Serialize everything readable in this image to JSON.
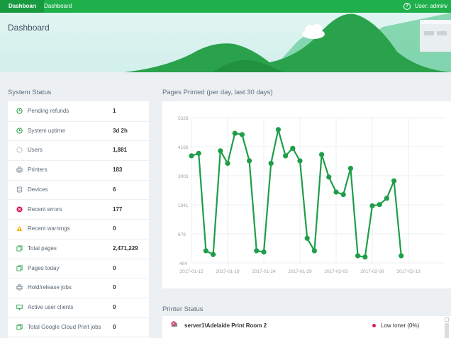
{
  "topbar": {
    "crumb1": "Dashboard",
    "crumb2": "Dashboard",
    "help": "?",
    "user": "User: admin",
    "user_chevron": "v"
  },
  "page_title": "Dashboard",
  "system_status": {
    "title": "System Status",
    "rows": [
      {
        "label": "Pending refunds",
        "value": "1",
        "icon": "clock-icon"
      },
      {
        "label": "System uptime",
        "value": "3d 2h",
        "icon": "clock-icon"
      },
      {
        "label": "Users",
        "value": "1,881",
        "icon": "user-icon"
      },
      {
        "label": "Printers",
        "value": "183",
        "icon": "printer-icon"
      },
      {
        "label": "Devices",
        "value": "6",
        "icon": "device-icon"
      },
      {
        "label": "Recent errors",
        "value": "177",
        "icon": "error-icon"
      },
      {
        "label": "Recent warnings",
        "value": "0",
        "icon": "warning-icon"
      },
      {
        "label": "Total pages",
        "value": "2,471,229",
        "icon": "pages-icon"
      },
      {
        "label": "Pages today",
        "value": "0",
        "icon": "pages-icon"
      },
      {
        "label": "Hold/release jobs",
        "value": "0",
        "icon": "printer-icon"
      },
      {
        "label": "Active user clients",
        "value": "0",
        "icon": "monitor-icon"
      },
      {
        "label": "Total Google Cloud Print jobs",
        "value": "0",
        "icon": "pages-icon"
      }
    ]
  },
  "pages_printed": {
    "title": "Pages Printed (per day, last 30 days)"
  },
  "chart_data": {
    "type": "line",
    "title": "",
    "xlabel": "",
    "ylabel": "",
    "y_ticks": [
      "-484",
      "678",
      "1841",
      "3003",
      "4166",
      "5328"
    ],
    "ylim": [
      -484,
      5328
    ],
    "x_ticks": [
      "2017-01-15",
      "2017-01-19",
      "2017-01-24",
      "2017-01-29",
      "2017-02-03",
      "2017-02-08",
      "2017-02-13"
    ],
    "x_range": [
      0,
      35
    ],
    "grid": true,
    "color": "#1e9e48",
    "points": [
      [
        0,
        3800
      ],
      [
        1,
        3900
      ],
      [
        2,
        0
      ],
      [
        3,
        -150
      ],
      [
        4,
        4000
      ],
      [
        5,
        3500
      ],
      [
        6,
        4700
      ],
      [
        7,
        4650
      ],
      [
        8,
        3600
      ],
      [
        9,
        0
      ],
      [
        10,
        -50
      ],
      [
        11,
        3500
      ],
      [
        12,
        4850
      ],
      [
        13,
        3800
      ],
      [
        14,
        4100
      ],
      [
        15,
        3600
      ],
      [
        16,
        500
      ],
      [
        17,
        0
      ],
      [
        18,
        3850
      ],
      [
        19,
        2950
      ],
      [
        20,
        2350
      ],
      [
        21,
        2250
      ],
      [
        22,
        3300
      ],
      [
        23,
        -200
      ],
      [
        24,
        -250
      ],
      [
        25,
        1800
      ],
      [
        26,
        1850
      ],
      [
        27,
        2100
      ],
      [
        28,
        2800
      ],
      [
        29,
        -200
      ]
    ]
  },
  "printer_status": {
    "title": "Printer Status",
    "rows": [
      {
        "name": "server1\\Adelaide Print Room 2",
        "status": "Low toner (0%)"
      }
    ]
  }
}
